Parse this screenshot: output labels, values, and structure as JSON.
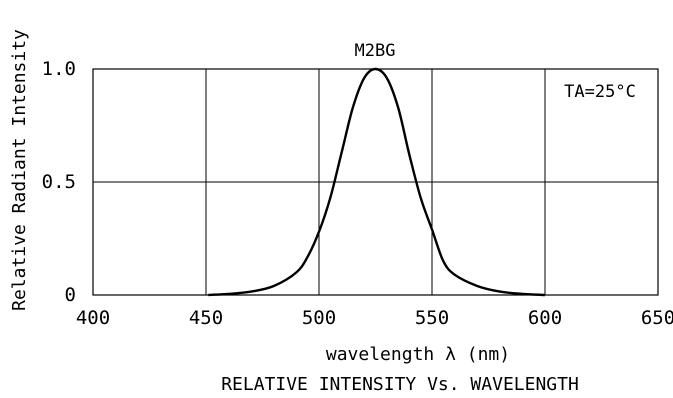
{
  "chart_data": {
    "type": "line",
    "title": "M2BG",
    "caption": "RELATIVE INTENSITY Vs. WAVELENGTH",
    "xlabel": "wavelength λ (nm)",
    "ylabel": "Relative Radiant Intensity",
    "annotation": "TA=25°C",
    "xlim": [
      400,
      650
    ],
    "ylim": [
      0,
      1.0
    ],
    "x_ticks": [
      400,
      450,
      500,
      550,
      600,
      650
    ],
    "x_tick_labels": [
      "400",
      "450",
      "500",
      "550",
      "600",
      "650"
    ],
    "y_ticks": [
      0,
      0.5,
      1.0
    ],
    "y_tick_labels": [
      "0",
      "0.5",
      "1.0"
    ],
    "grid": true,
    "series": [
      {
        "color": "#000000",
        "points": [
          [
            451,
            0.0
          ],
          [
            460,
            0.005
          ],
          [
            470,
            0.015
          ],
          [
            480,
            0.04
          ],
          [
            490,
            0.1
          ],
          [
            495,
            0.17
          ],
          [
            500,
            0.28
          ],
          [
            505,
            0.43
          ],
          [
            510,
            0.63
          ],
          [
            515,
            0.83
          ],
          [
            520,
            0.96
          ],
          [
            525,
            1.0
          ],
          [
            530,
            0.96
          ],
          [
            535,
            0.83
          ],
          [
            540,
            0.62
          ],
          [
            545,
            0.43
          ],
          [
            550,
            0.29
          ],
          [
            555,
            0.15
          ],
          [
            560,
            0.09
          ],
          [
            570,
            0.04
          ],
          [
            580,
            0.015
          ],
          [
            590,
            0.005
          ],
          [
            600,
            0.0
          ]
        ]
      }
    ]
  }
}
